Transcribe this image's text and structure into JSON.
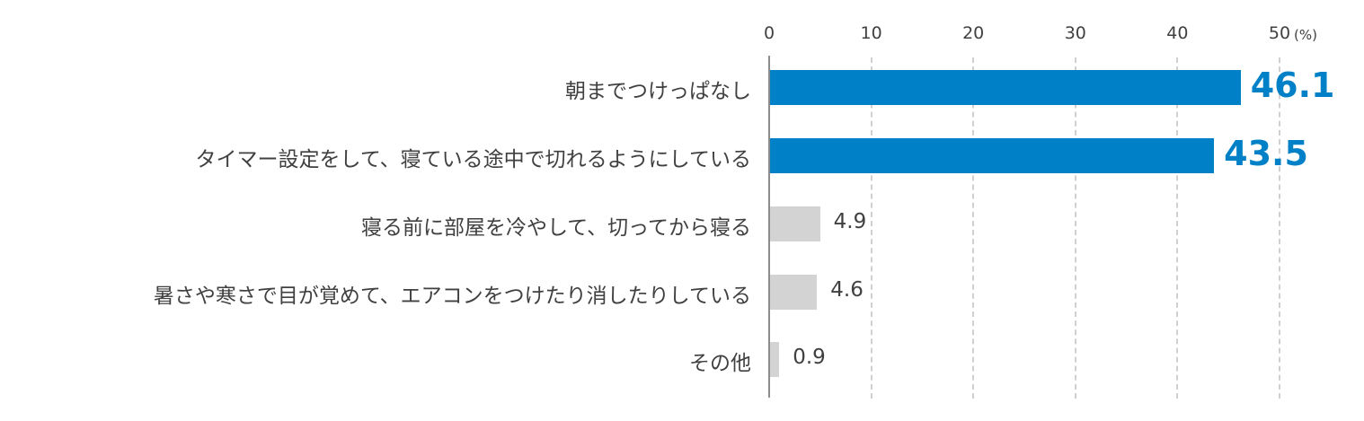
{
  "chart_data": {
    "type": "bar",
    "orientation": "horizontal",
    "title": "",
    "xlabel": "",
    "ylabel": "",
    "unit_label": "(%)",
    "xlim": [
      0,
      50
    ],
    "x_ticks": [
      "0",
      "10",
      "20",
      "30",
      "40",
      "50"
    ],
    "grid": true,
    "categories": [
      "朝までつけっぱなし",
      "タイマー設定をして、寝ている途中で切れるようにしている",
      "寝る前に部屋を冷やして、切ってから寝る",
      "暑さや寒さで目が覚めて、エアコンをつけたり消したりしている",
      "その他"
    ],
    "values": [
      46.1,
      43.5,
      4.9,
      4.6,
      0.9
    ],
    "value_labels": [
      "46.1",
      "43.5",
      "4.9",
      "4.6",
      "0.9"
    ],
    "highlighted": [
      true,
      true,
      false,
      false,
      false
    ],
    "colors": {
      "highlight": "#0080c6",
      "normal": "#d3d3d3",
      "text": "#404040",
      "axis": "#8c8c8c",
      "grid": "#d0d0d0"
    }
  }
}
